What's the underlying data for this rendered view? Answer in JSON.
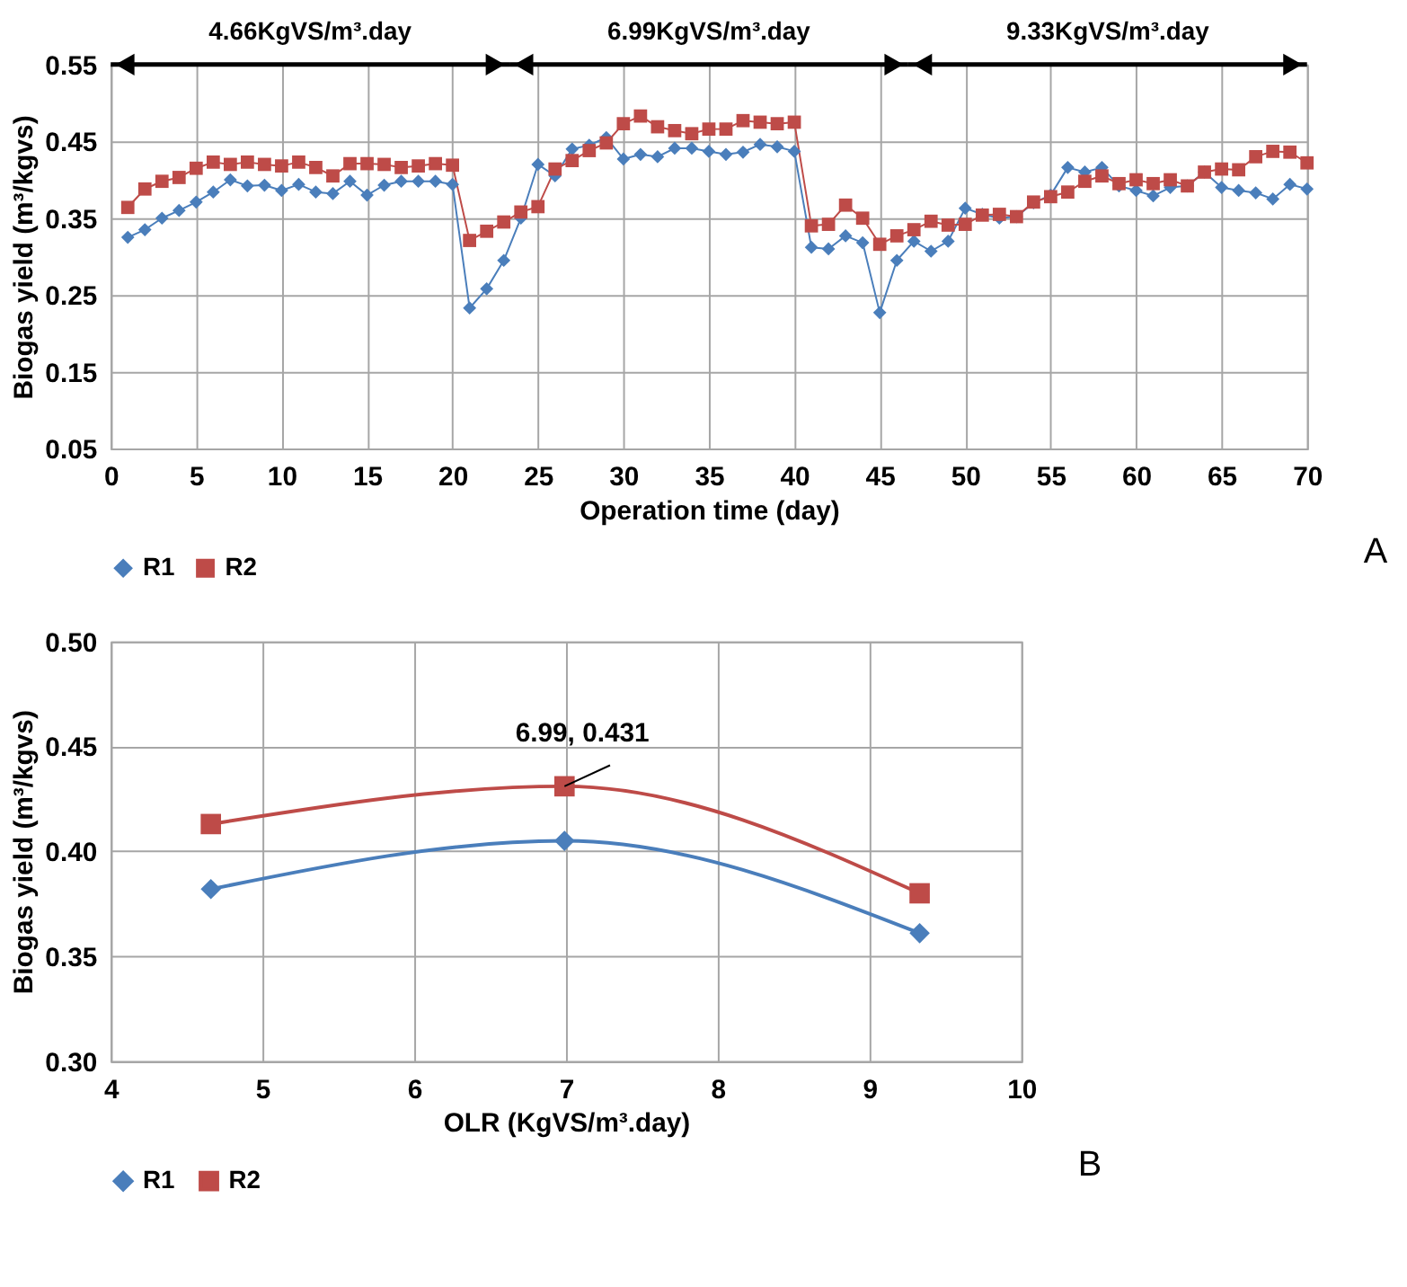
{
  "chart_data": [
    {
      "type": "line",
      "xlabel": "Operation time (day)",
      "ylabel": "Biogas yield (m³/kgvs)",
      "x": [
        1,
        2,
        3,
        4,
        5,
        6,
        7,
        8,
        9,
        10,
        11,
        12,
        13,
        14,
        15,
        16,
        17,
        18,
        19,
        20,
        21,
        22,
        23,
        24,
        25,
        26,
        27,
        28,
        29,
        30,
        31,
        32,
        33,
        34,
        35,
        36,
        37,
        38,
        39,
        40,
        41,
        42,
        43,
        44,
        45,
        46,
        47,
        48,
        49,
        50,
        51,
        52,
        53,
        54,
        55,
        56,
        57,
        58,
        59,
        60,
        61,
        62,
        63,
        64,
        65,
        66,
        67,
        68,
        69,
        70
      ],
      "series": [
        {
          "name": "R1",
          "color": "#4a7ebb",
          "marker": "diamond",
          "values": [
            0.325,
            0.335,
            0.35,
            0.36,
            0.371,
            0.384,
            0.4,
            0.392,
            0.393,
            0.386,
            0.394,
            0.384,
            0.382,
            0.398,
            0.38,
            0.393,
            0.398,
            0.398,
            0.398,
            0.394,
            0.233,
            0.258,
            0.295,
            0.35,
            0.42,
            0.405,
            0.44,
            0.445,
            0.455,
            0.427,
            0.433,
            0.43,
            0.441,
            0.441,
            0.437,
            0.433,
            0.436,
            0.446,
            0.443,
            0.437,
            0.312,
            0.31,
            0.327,
            0.318,
            0.227,
            0.295,
            0.32,
            0.307,
            0.32,
            0.363,
            0.355,
            0.35,
            0.352,
            0.37,
            0.38,
            0.416,
            0.41,
            0.416,
            0.392,
            0.386,
            0.379,
            0.39,
            0.392,
            0.41,
            0.39,
            0.386,
            0.383,
            0.375,
            0.394,
            0.388
          ]
        },
        {
          "name": "R2",
          "color": "#be4b48",
          "marker": "square",
          "values": [
            0.364,
            0.388,
            0.398,
            0.403,
            0.415,
            0.423,
            0.42,
            0.423,
            0.42,
            0.418,
            0.423,
            0.416,
            0.405,
            0.421,
            0.421,
            0.42,
            0.416,
            0.418,
            0.421,
            0.419,
            0.321,
            0.333,
            0.345,
            0.358,
            0.365,
            0.414,
            0.425,
            0.438,
            0.448,
            0.473,
            0.483,
            0.469,
            0.464,
            0.46,
            0.466,
            0.466,
            0.477,
            0.475,
            0.473,
            0.475,
            0.34,
            0.342,
            0.367,
            0.35,
            0.316,
            0.327,
            0.335,
            0.346,
            0.341,
            0.342,
            0.354,
            0.355,
            0.352,
            0.371,
            0.378,
            0.384,
            0.398,
            0.405,
            0.395,
            0.4,
            0.395,
            0.4,
            0.392,
            0.41,
            0.414,
            0.413,
            0.43,
            0.437,
            0.436,
            0.422
          ]
        }
      ],
      "xlim": [
        0,
        70
      ],
      "xticks": [
        0,
        5,
        10,
        15,
        20,
        25,
        30,
        35,
        40,
        45,
        50,
        55,
        60,
        65,
        70
      ],
      "ylim": [
        0.05,
        0.55
      ],
      "yticks": [
        0.05,
        0.15,
        0.25,
        0.35,
        0.45,
        0.55
      ],
      "grid": true,
      "legend": "bottom",
      "annotations": [
        "4.66KgVS/m³.day",
        "6.99KgVS/m³.day",
        "9.33KgVS/m³.day",
        "A"
      ]
    },
    {
      "type": "line",
      "xlabel": "OLR (KgVS/m³.day)",
      "ylabel": "Biogas yield (m³/kgvs)",
      "x": [
        4.66,
        6.99,
        9.33
      ],
      "series": [
        {
          "name": "R1",
          "color": "#4a7ebb",
          "marker": "diamond",
          "values": [
            0.382,
            0.405,
            0.361
          ]
        },
        {
          "name": "R2",
          "color": "#be4b48",
          "marker": "square",
          "values": [
            0.413,
            0.431,
            0.38
          ]
        }
      ],
      "xlim": [
        4,
        10
      ],
      "xticks": [
        4,
        5,
        6,
        7,
        8,
        9,
        10
      ],
      "ylim": [
        0.3,
        0.5
      ],
      "yticks": [
        {
          "value": 0.3,
          "label": "0.30"
        },
        {
          "value": 0.35,
          "label": "0.35"
        },
        {
          "value": 0.4,
          "label": "0.40"
        },
        {
          "value": 0.45,
          "label": "0.45"
        },
        {
          "value": 0.5,
          "label": "0.50"
        }
      ],
      "grid": true,
      "legend": "bottom",
      "annotations": [
        {
          "text": "6.99, 0.431",
          "x": 6.99,
          "y": 0.431
        },
        "B"
      ]
    }
  ]
}
